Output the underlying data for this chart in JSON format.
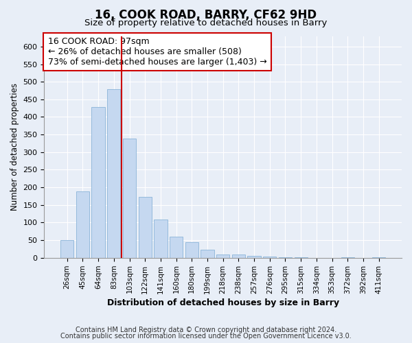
{
  "title1": "16, COOK ROAD, BARRY, CF62 9HD",
  "title2": "Size of property relative to detached houses in Barry",
  "xlabel": "Distribution of detached houses by size in Barry",
  "ylabel": "Number of detached properties",
  "categories": [
    "26sqm",
    "45sqm",
    "64sqm",
    "83sqm",
    "103sqm",
    "122sqm",
    "141sqm",
    "160sqm",
    "180sqm",
    "199sqm",
    "218sqm",
    "238sqm",
    "257sqm",
    "276sqm",
    "295sqm",
    "315sqm",
    "334sqm",
    "353sqm",
    "372sqm",
    "392sqm",
    "411sqm"
  ],
  "values": [
    50,
    188,
    428,
    478,
    338,
    172,
    108,
    60,
    44,
    22,
    10,
    10,
    5,
    3,
    1,
    1,
    0,
    0,
    1,
    0,
    1
  ],
  "bar_color": "#c5d8f0",
  "bar_edge_color": "#8ab4d8",
  "vline_x": 3.5,
  "vline_color": "#cc0000",
  "annotation_text": "16 COOK ROAD: 97sqm\n← 26% of detached houses are smaller (508)\n73% of semi-detached houses are larger (1,403) →",
  "annotation_box_color": "#ffffff",
  "annotation_box_edge": "#cc0000",
  "ylim_max": 630,
  "yticks": [
    0,
    50,
    100,
    150,
    200,
    250,
    300,
    350,
    400,
    450,
    500,
    550,
    600
  ],
  "bg_color": "#e8eef7",
  "footer1": "Contains HM Land Registry data © Crown copyright and database right 2024.",
  "footer2": "Contains public sector information licensed under the Open Government Licence v3.0."
}
